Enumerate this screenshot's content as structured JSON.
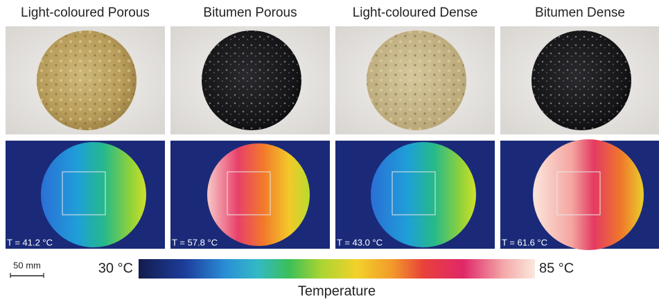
{
  "panels": [
    {
      "title": "Light-coloured Porous",
      "temperature": "T = 41.2 °C"
    },
    {
      "title": "Bitumen Porous",
      "temperature": "T = 57.8 °C"
    },
    {
      "title": "Light-coloured Dense",
      "temperature": "T = 43.0 °C"
    },
    {
      "title": "Bitumen Dense",
      "temperature": "T = 61.6 °C"
    }
  ],
  "scale_bar": "50 mm",
  "colorbar": {
    "min_label": "30 °C",
    "max_label": "85 °C",
    "label": "Temperature"
  }
}
